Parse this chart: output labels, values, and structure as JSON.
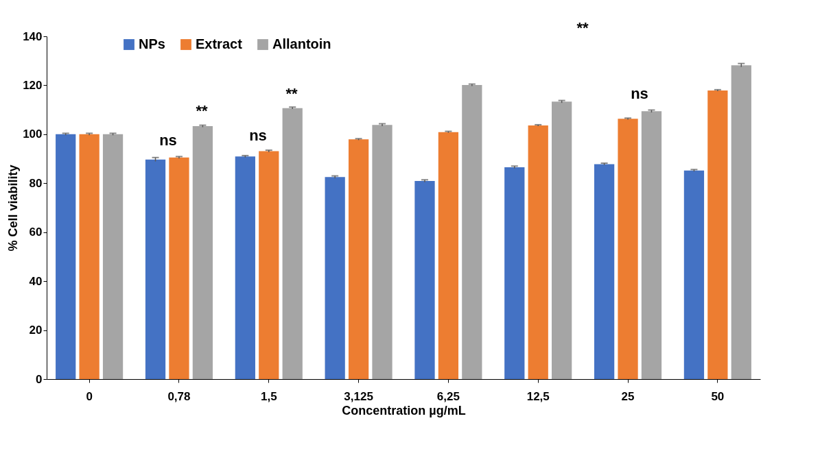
{
  "chart_data": {
    "type": "bar",
    "xlabel": "Concentration µg/mL",
    "ylabel": "% Cell viability",
    "categories": [
      "0",
      "0,78",
      "1,5",
      "3,125",
      "6,25",
      "12,5",
      "25",
      "50"
    ],
    "series": [
      {
        "name": "NPs",
        "color": "#4472c4",
        "values": [
          100,
          89.7,
          90.9,
          82.5,
          80.9,
          86.5,
          87.8,
          85.2
        ],
        "errors": [
          0.4,
          0.8,
          0.4,
          0.5,
          0.5,
          0.5,
          0.4,
          0.4
        ]
      },
      {
        "name": "Extract",
        "color": "#ed7d31",
        "values": [
          100,
          90.5,
          93.1,
          97.9,
          100.9,
          103.6,
          106.3,
          117.9
        ],
        "errors": [
          0.4,
          0.4,
          0.4,
          0.3,
          0.3,
          0.3,
          0.3,
          0.3
        ]
      },
      {
        "name": "Allantoin",
        "color": "#a5a5a5",
        "values": [
          100,
          103.3,
          110.7,
          103.8,
          120.1,
          113.3,
          109.4,
          128.2
        ],
        "errors": [
          0.4,
          0.4,
          0.4,
          0.5,
          0.4,
          0.5,
          0.5,
          0.7
        ]
      }
    ],
    "ylim": [
      0,
      140
    ],
    "yticks": [
      0,
      20,
      40,
      60,
      80,
      100,
      120,
      140
    ],
    "legend": "top",
    "grid": false,
    "annotations": [
      "ns",
      "**",
      "ns",
      "**",
      "ns",
      "**"
    ]
  }
}
